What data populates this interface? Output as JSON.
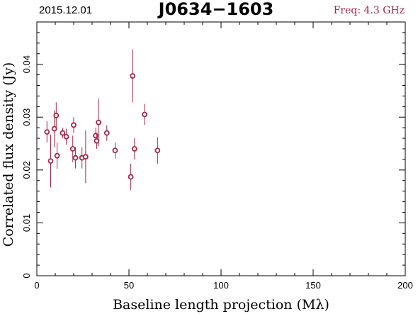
{
  "header": {
    "date": "2015.12.01",
    "source": "J0634−1603",
    "frequency": "Freq: 4.3 GHz"
  },
  "colors": {
    "marker": "#a0284a",
    "axes": "#000000",
    "background": "#ffffff"
  },
  "chart_data": {
    "type": "scatter",
    "title": "J0634−1603",
    "xlabel": "Baseline length projection (Mλ)",
    "ylabel": "Correlated flux density (Jy)",
    "xlim": [
      0,
      200
    ],
    "ylim": [
      0,
      0.048
    ],
    "xticks": [
      0,
      50,
      100,
      150,
      200
    ],
    "xtick_labels": [
      "0",
      "50",
      "100",
      "150",
      "200"
    ],
    "yticks": [
      0,
      0.01,
      0.02,
      0.03,
      0.04
    ],
    "ytick_labels": [
      "0",
      "0.01",
      "0.02",
      "0.03",
      "0.04"
    ],
    "grid": false,
    "series": [
      {
        "marker": "open-circle",
        "error_bars": true,
        "points": [
          {
            "x": 5.5,
            "y": 0.0272,
            "err": 0.002
          },
          {
            "x": 7.5,
            "y": 0.0217,
            "err": 0.005
          },
          {
            "x": 9.5,
            "y": 0.0278,
            "err": 0.0035
          },
          {
            "x": 10.5,
            "y": 0.0303,
            "err": 0.0025
          },
          {
            "x": 11.0,
            "y": 0.0227,
            "err": 0.0025
          },
          {
            "x": 14.0,
            "y": 0.027,
            "err": 0.001
          },
          {
            "x": 16.0,
            "y": 0.0263,
            "err": 0.0015
          },
          {
            "x": 19.5,
            "y": 0.024,
            "err": 0.0025
          },
          {
            "x": 20.0,
            "y": 0.0285,
            "err": 0.0015
          },
          {
            "x": 21.0,
            "y": 0.0223,
            "err": 0.002
          },
          {
            "x": 24.5,
            "y": 0.0223,
            "err": 0.002
          },
          {
            "x": 26.5,
            "y": 0.0225,
            "err": 0.005
          },
          {
            "x": 32.0,
            "y": 0.0265,
            "err": 0.0015
          },
          {
            "x": 32.5,
            "y": 0.0255,
            "err": 0.0015
          },
          {
            "x": 33.5,
            "y": 0.029,
            "err": 0.0045
          },
          {
            "x": 38.0,
            "y": 0.027,
            "err": 0.0015
          },
          {
            "x": 42.5,
            "y": 0.0237,
            "err": 0.0015
          },
          {
            "x": 51.0,
            "y": 0.0187,
            "err": 0.0025
          },
          {
            "x": 52.0,
            "y": 0.0378,
            "err": 0.005
          },
          {
            "x": 53.0,
            "y": 0.024,
            "err": 0.002
          },
          {
            "x": 58.5,
            "y": 0.0305,
            "err": 0.002
          },
          {
            "x": 65.5,
            "y": 0.0237,
            "err": 0.0025
          }
        ]
      }
    ]
  }
}
